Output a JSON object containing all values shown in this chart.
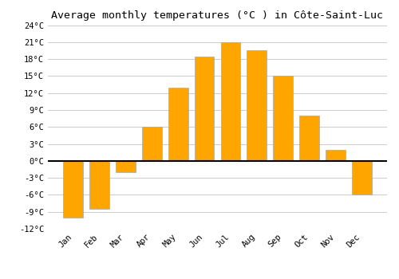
{
  "title": "Average monthly temperatures (°C ) in Côte-Saint-Luc",
  "months": [
    "Jan",
    "Feb",
    "Mar",
    "Apr",
    "May",
    "Jun",
    "Jul",
    "Aug",
    "Sep",
    "Oct",
    "Nov",
    "Dec"
  ],
  "values": [
    -10,
    -8.5,
    -2,
    6,
    13,
    18.5,
    21,
    19.5,
    15,
    8,
    2,
    -6
  ],
  "bar_color": "#FFA500",
  "bar_edge_color": "#aaaaaa",
  "background_color": "#ffffff",
  "grid_color": "#cccccc",
  "zero_line_color": "#000000",
  "ylim": [
    -12,
    24
  ],
  "yticks": [
    -12,
    -9,
    -6,
    -3,
    0,
    3,
    6,
    9,
    12,
    15,
    18,
    21,
    24
  ],
  "title_fontsize": 9.5,
  "tick_fontsize": 7.5,
  "font_family": "monospace",
  "bar_width": 0.75
}
